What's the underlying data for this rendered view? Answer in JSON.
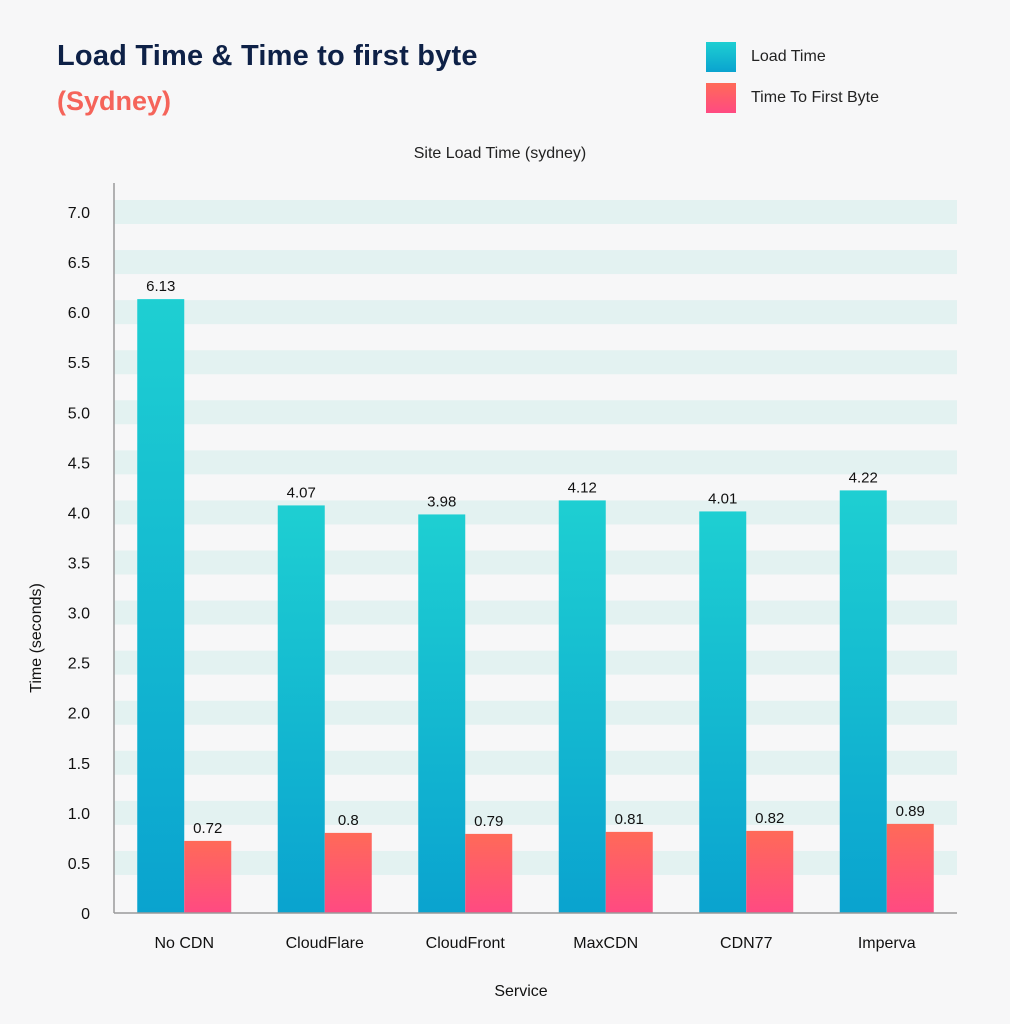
{
  "header": {
    "title": "Load Time & Time to first byte",
    "subtitle": "(Sydney)"
  },
  "legend": {
    "items": [
      {
        "label": "Load Time"
      },
      {
        "label": "Time To First Byte"
      }
    ]
  },
  "colors": {
    "load_top": "#1ecfd2",
    "load_bottom": "#0aa3cf",
    "ttfb_top": "#ff6a58",
    "ttfb_bottom": "#ff4a82",
    "band": "#e3f2f1",
    "title": "#0e2147",
    "subtitle": "#f5645a"
  },
  "chart_data": {
    "type": "bar",
    "title": "Site Load Time (sydney)",
    "xlabel": "Service",
    "ylabel": "Time (seconds)",
    "ylim": [
      0,
      7.0
    ],
    "yticks": [
      "0",
      "0.5",
      "1.0",
      "1.5",
      "2.0",
      "2.5",
      "3.0",
      "3.5",
      "4.0",
      "4.5",
      "5.0",
      "5.5",
      "6.0",
      "6.5",
      "7.0"
    ],
    "categories": [
      "No CDN",
      "CloudFlare",
      "CloudFront",
      "MaxCDN",
      "CDN77",
      "Imperva"
    ],
    "series": [
      {
        "name": "Load Time",
        "values": [
          6.13,
          4.07,
          3.98,
          4.12,
          4.01,
          4.22
        ]
      },
      {
        "name": "Time To First Byte",
        "values": [
          0.72,
          0.8,
          0.79,
          0.81,
          0.82,
          0.89
        ]
      }
    ],
    "grid": "horizontal bands",
    "legend_position": "top-right"
  }
}
